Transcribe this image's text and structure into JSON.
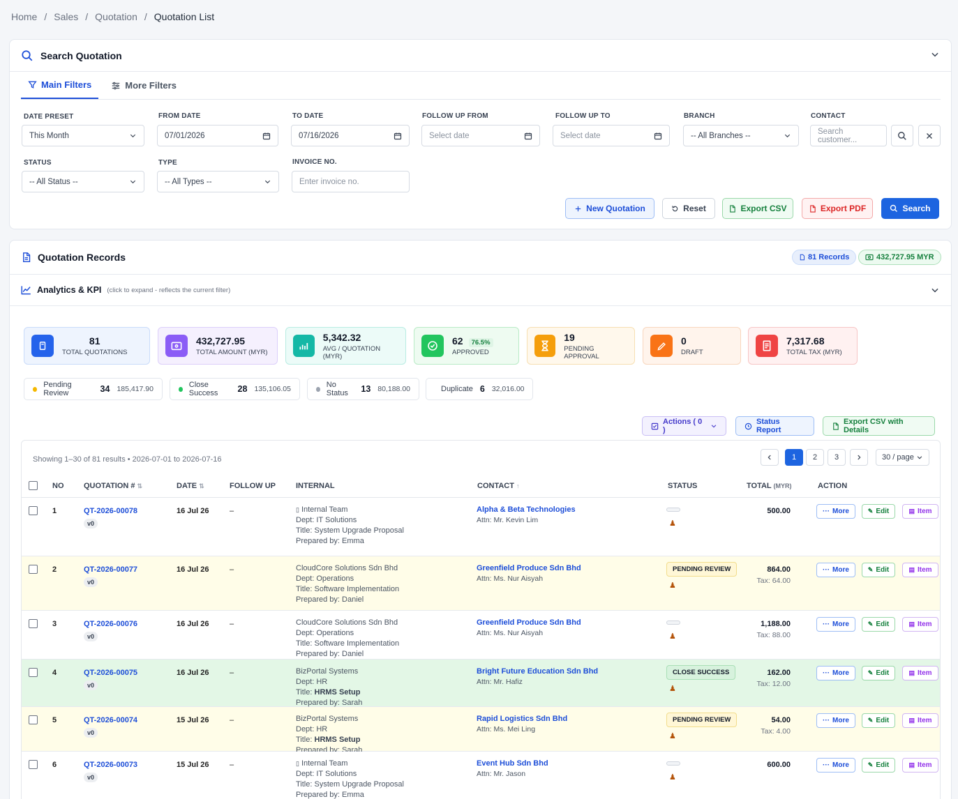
{
  "breadcrumb": [
    "Home",
    "Sales",
    "Quotation",
    "Quotation List"
  ],
  "search": {
    "title": "Search Quotation",
    "tabs": [
      "Main Filters",
      "More Filters"
    ],
    "fields": {
      "date_preset": {
        "label": "DATE PRESET",
        "value": "This Month"
      },
      "from_date": {
        "label": "FROM DATE",
        "value": "07/01/2026"
      },
      "to_date": {
        "label": "TO DATE",
        "value": "07/16/2026"
      },
      "follow_from": {
        "label": "FOLLOW UP FROM",
        "placeholder": "Select date"
      },
      "follow_to": {
        "label": "FOLLOW UP TO",
        "placeholder": "Select date"
      },
      "branch": {
        "label": "BRANCH",
        "value": "-- All Branches --"
      },
      "contact": {
        "label": "CONTACT",
        "placeholder": "Search customer..."
      },
      "status": {
        "label": "STATUS",
        "value": "-- All Status --"
      },
      "type": {
        "label": "TYPE",
        "value": "-- All Types --"
      },
      "invoice": {
        "label": "INVOICE NO.",
        "placeholder": "Enter invoice no."
      }
    },
    "buttons": {
      "new": "New Quotation",
      "reset": "Reset",
      "csv": "Export CSV",
      "pdf": "Export PDF",
      "search": "Search"
    }
  },
  "records": {
    "title": "Quotation Records",
    "count_pill": "81 Records",
    "amount_pill": "432,727.95 MYR",
    "analytics_title": "Analytics & KPI",
    "analytics_hint": "(click to expand - reflects the current filter)"
  },
  "kpis": [
    {
      "value": "81",
      "label": "TOTAL QUOTATIONS",
      "color": "#2563eb"
    },
    {
      "value": "432,727.95",
      "label": "TOTAL AMOUNT (MYR)",
      "color": "#8b5cf6"
    },
    {
      "value": "5,342.32",
      "label": "AVG / QUOTATION (MYR)",
      "color": "#14b8a6"
    },
    {
      "value": "62",
      "extra": "76.5%",
      "label": "APPROVED",
      "color": "#22c55e"
    },
    {
      "value": "19",
      "label": "PENDING APPROVAL",
      "color": "#f59e0b"
    },
    {
      "value": "0",
      "label": "DRAFT",
      "color": "#f97316"
    },
    {
      "value": "7,317.68",
      "label": "TOTAL TAX (MYR)",
      "color": "#ef4444"
    }
  ],
  "status_summary": [
    {
      "label": "Pending Review",
      "count": "34",
      "amount": "185,417.90",
      "color": "#f5b800"
    },
    {
      "label": "Close Success",
      "count": "28",
      "amount": "135,106.05",
      "color": "#22c55e"
    },
    {
      "label": "No Status",
      "count": "13",
      "amount": "80,188.00",
      "color": "#9ca3af"
    },
    {
      "label": "Duplicate",
      "count": "6",
      "amount": "32,016.00",
      "color": "#93b4e8"
    }
  ],
  "table_actions": {
    "actions": "Actions ( 0 )",
    "status_report": "Status Report",
    "export_details": "Export CSV with Details"
  },
  "table": {
    "info": "Showing 1–30 of 81 results  •  2026-07-01 to 2026-07-16",
    "pages": [
      "1",
      "2",
      "3"
    ],
    "per_page": "30 / page",
    "headers": {
      "no": "NO",
      "quotation": "QUOTATION #",
      "date": "DATE",
      "follow": "FOLLOW UP",
      "internal": "INTERNAL",
      "contact": "CONTACT",
      "status": "STATUS",
      "total": "TOTAL",
      "total_unit": "(MYR)",
      "action": "ACTION"
    },
    "action_labels": {
      "more": "More",
      "edit": "Edit",
      "item": "Item"
    },
    "rows": [
      {
        "no": "1",
        "qn": "QT-2026-00078",
        "ver": "v0",
        "date": "16 Jul 26",
        "follow": "–",
        "org": "Internal Team",
        "dept": "Dept: IT Solutions",
        "title_prefix": "Title: ",
        "title": "System Upgrade Proposal",
        "prep": "Prepared by: Emma",
        "contact": "Alpha & Beta Technologies",
        "attn": "Attn:  Mr. Kevin Lim",
        "status": "",
        "total": "500.00",
        "tax": ""
      },
      {
        "no": "2",
        "qn": "QT-2026-00077",
        "ver": "v0",
        "date": "16 Jul 26",
        "follow": "–",
        "org": "CloudCore Solutions Sdn Bhd",
        "dept": "Dept: Operations",
        "title_prefix": "Title: ",
        "title": "Software Implementation",
        "prep": "Prepared by: Daniel",
        "contact": "Greenfield Produce Sdn Bhd",
        "attn": "Attn:  Ms. Nur Aisyah",
        "status": "PENDING REVIEW",
        "total": "864.00",
        "tax": "Tax: 64.00"
      },
      {
        "no": "3",
        "qn": "QT-2026-00076",
        "ver": "v0",
        "date": "16 Jul 26",
        "follow": "–",
        "org": "CloudCore Solutions Sdn Bhd",
        "dept": "Dept: Operations",
        "title_prefix": "Title: ",
        "title": "Software Implementation",
        "prep": "Prepared by: Daniel",
        "contact": "Greenfield Produce Sdn Bhd",
        "attn": "Attn:  Ms. Nur Aisyah",
        "status": "",
        "total": "1,188.00",
        "tax": "Tax: 88.00"
      },
      {
        "no": "4",
        "qn": "QT-2026-00075",
        "ver": "v0",
        "date": "16 Jul 26",
        "follow": "–",
        "org": "BizPortal Systems",
        "dept": "Dept: HR",
        "title_prefix": "Title: ",
        "title": "HRMS Setup",
        "prep": "Prepared by: Sarah",
        "contact": "Bright Future Education Sdn Bhd",
        "attn": "Attn:  Mr. Hafiz",
        "status": "CLOSE SUCCESS",
        "total": "162.00",
        "tax": "Tax: 12.00"
      },
      {
        "no": "5",
        "qn": "QT-2026-00074",
        "ver": "v0",
        "date": "15 Jul 26",
        "follow": "–",
        "org": "BizPortal Systems",
        "dept": "Dept: HR",
        "title_prefix": "Title: ",
        "title": "HRMS Setup",
        "prep": "Prepared by: Sarah",
        "contact": "Rapid Logistics Sdn Bhd",
        "attn": "Attn:  Ms. Mei Ling",
        "status": "PENDING REVIEW",
        "total": "54.00",
        "tax": "Tax: 4.00"
      },
      {
        "no": "6",
        "qn": "QT-2026-00073",
        "ver": "v0",
        "date": "15 Jul 26",
        "follow": "–",
        "org": "Internal Team",
        "dept": "Dept: IT Solutions",
        "title_prefix": "Title: ",
        "title": "System Upgrade Proposal",
        "prep": "Prepared by: Emma",
        "contact": "Event Hub Sdn Bhd",
        "attn": "Attn:  Mr. Jason",
        "status": "",
        "total": "600.00",
        "tax": ""
      }
    ]
  }
}
